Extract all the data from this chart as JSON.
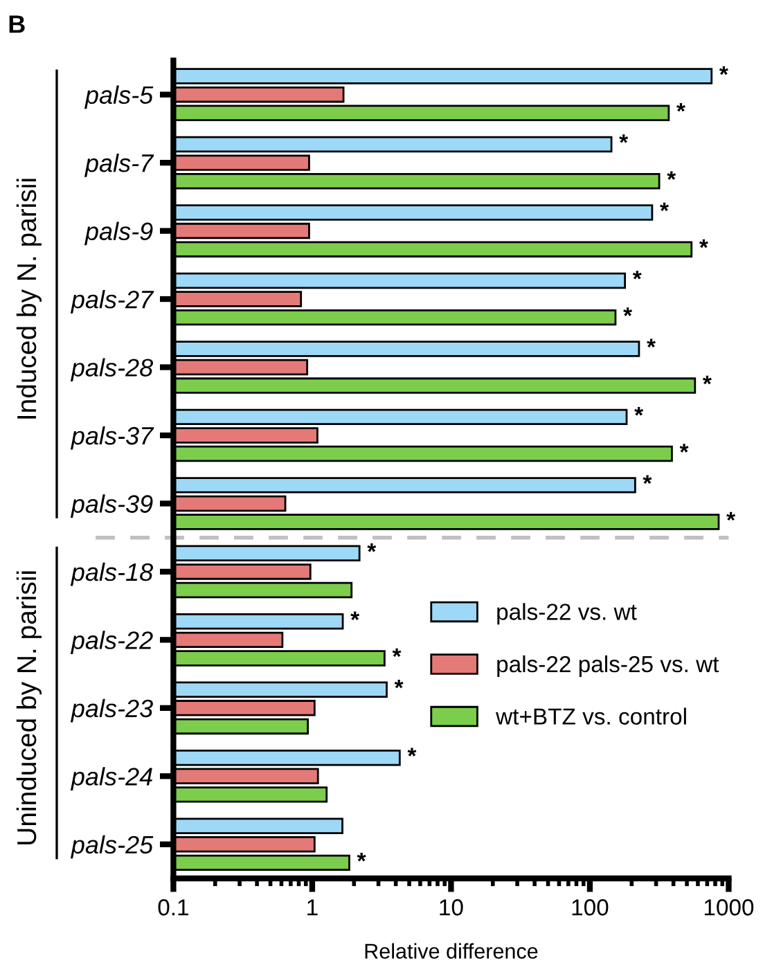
{
  "chart_data": {
    "type": "bar",
    "orientation": "horizontal",
    "log": "x",
    "title": "B",
    "xlabel": "Relative difference",
    "categories": [
      "pals-5",
      "pals-7",
      "pals-9",
      "pals-27",
      "pals-28",
      "pals-37",
      "pals-39",
      "pals-18",
      "pals-22",
      "pals-23",
      "pals-24",
      "pals-25"
    ],
    "series": [
      {
        "name": "pals-22 vs. wt",
        "color": "#9dd9f7",
        "values": [
          753,
          143,
          281,
          179,
          226,
          184,
          212,
          2.19,
          1.66,
          3.44,
          4.27,
          1.65
        ],
        "value_labels": [
          "*",
          "*",
          "*",
          "*",
          "*",
          "*",
          "*",
          "*",
          "*",
          "*",
          "*",
          null
        ]
      },
      {
        "name": "pals-22 pals-25 vs. wt",
        "color": "#e47a78",
        "values": [
          1.68,
          0.95,
          0.95,
          0.83,
          0.92,
          1.09,
          0.64,
          0.97,
          0.61,
          1.04,
          1.1,
          1.04
        ],
        "value_labels": [
          null,
          null,
          null,
          null,
          null,
          null,
          null,
          null,
          null,
          null,
          null,
          null
        ]
      },
      {
        "name": "wt+BTZ vs. control",
        "color": "#7ccd4c",
        "values": [
          370,
          316,
          540,
          153,
          572,
          390,
          847,
          1.92,
          3.32,
          0.93,
          1.27,
          1.85
        ],
        "value_labels": [
          "*",
          "*",
          "*",
          "*",
          "*",
          "*",
          "*",
          null,
          "*",
          null,
          null,
          "*"
        ]
      }
    ],
    "xlim": [
      0.1,
      1000
    ],
    "xticks": [
      0.1,
      1,
      10,
      100,
      1000
    ],
    "annotations": [
      "Induced by N. parisii",
      "Uninduced by N. parisii"
    ],
    "legend": "right",
    "grid": false
  }
}
